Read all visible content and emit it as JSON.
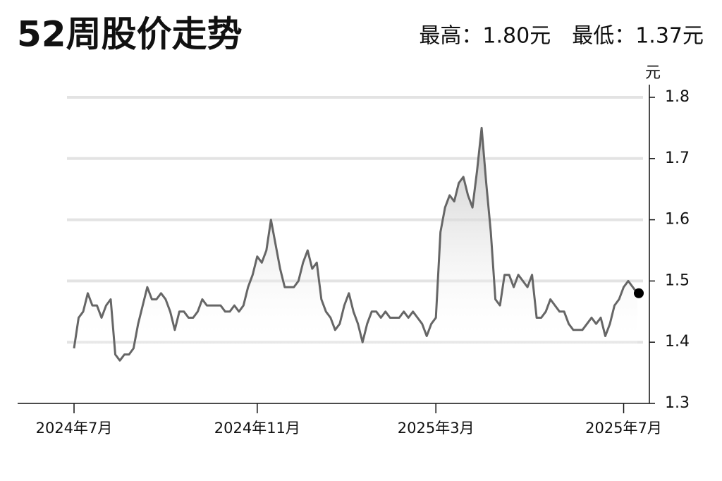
{
  "chart_data": {
    "type": "line",
    "title": "52周股价走势",
    "subtitle": "最高：1.80元　最低：1.37元",
    "ylabel": "元",
    "color": "#666666",
    "grid": true,
    "ylim": [
      1.3,
      1.8
    ],
    "yticks": [
      1.3,
      1.4,
      1.5,
      1.6,
      1.7,
      1.8
    ],
    "categories": [
      "2024年7月",
      null,
      null,
      null,
      null,
      null,
      null,
      null,
      null,
      null,
      null,
      null,
      null,
      null,
      null,
      null,
      null,
      null,
      null,
      null,
      null,
      null,
      null,
      null,
      null,
      null,
      null,
      null,
      null,
      null,
      null,
      null,
      null,
      null,
      null,
      null,
      null,
      null,
      null,
      null,
      "2024年11月",
      null,
      null,
      null,
      null,
      null,
      null,
      null,
      null,
      null,
      null,
      null,
      null,
      null,
      null,
      null,
      null,
      null,
      null,
      null,
      null,
      null,
      null,
      null,
      null,
      null,
      null,
      null,
      null,
      null,
      null,
      null,
      null,
      null,
      null,
      null,
      null,
      null,
      null,
      "2025年3月",
      null,
      null,
      null,
      null,
      null,
      null,
      null,
      null,
      null,
      null,
      null,
      null,
      null,
      null,
      null,
      null,
      null,
      null,
      null,
      null,
      null,
      null,
      null,
      null,
      null,
      null,
      null,
      null,
      null,
      null,
      null,
      null,
      null,
      null,
      null,
      null,
      null,
      null,
      null,
      null,
      "2025年7月",
      null,
      null,
      null
    ],
    "values": [
      1.39,
      1.44,
      1.45,
      1.48,
      1.46,
      1.46,
      1.44,
      1.46,
      1.47,
      1.38,
      1.37,
      1.38,
      1.38,
      1.39,
      1.43,
      1.46,
      1.49,
      1.47,
      1.47,
      1.48,
      1.47,
      1.45,
      1.42,
      1.45,
      1.45,
      1.44,
      1.44,
      1.45,
      1.47,
      1.46,
      1.46,
      1.46,
      1.46,
      1.45,
      1.45,
      1.46,
      1.45,
      1.46,
      1.49,
      1.51,
      1.54,
      1.53,
      1.55,
      1.6,
      1.56,
      1.52,
      1.49,
      1.49,
      1.49,
      1.5,
      1.53,
      1.55,
      1.52,
      1.53,
      1.47,
      1.45,
      1.44,
      1.42,
      1.43,
      1.46,
      1.48,
      1.45,
      1.43,
      1.4,
      1.43,
      1.45,
      1.45,
      1.44,
      1.45,
      1.44,
      1.44,
      1.44,
      1.45,
      1.44,
      1.45,
      1.44,
      1.43,
      1.41,
      1.43,
      1.44,
      1.58,
      1.62,
      1.64,
      1.63,
      1.66,
      1.67,
      1.64,
      1.62,
      1.68,
      1.75,
      1.66,
      1.58,
      1.47,
      1.46,
      1.51,
      1.51,
      1.49,
      1.51,
      1.5,
      1.49,
      1.51,
      1.44,
      1.44,
      1.45,
      1.47,
      1.46,
      1.45,
      1.45,
      1.43,
      1.42,
      1.42,
      1.42,
      1.43,
      1.44,
      1.43,
      1.44,
      1.41,
      1.43,
      1.46,
      1.47,
      1.49,
      1.5,
      1.49,
      1.48
    ]
  }
}
